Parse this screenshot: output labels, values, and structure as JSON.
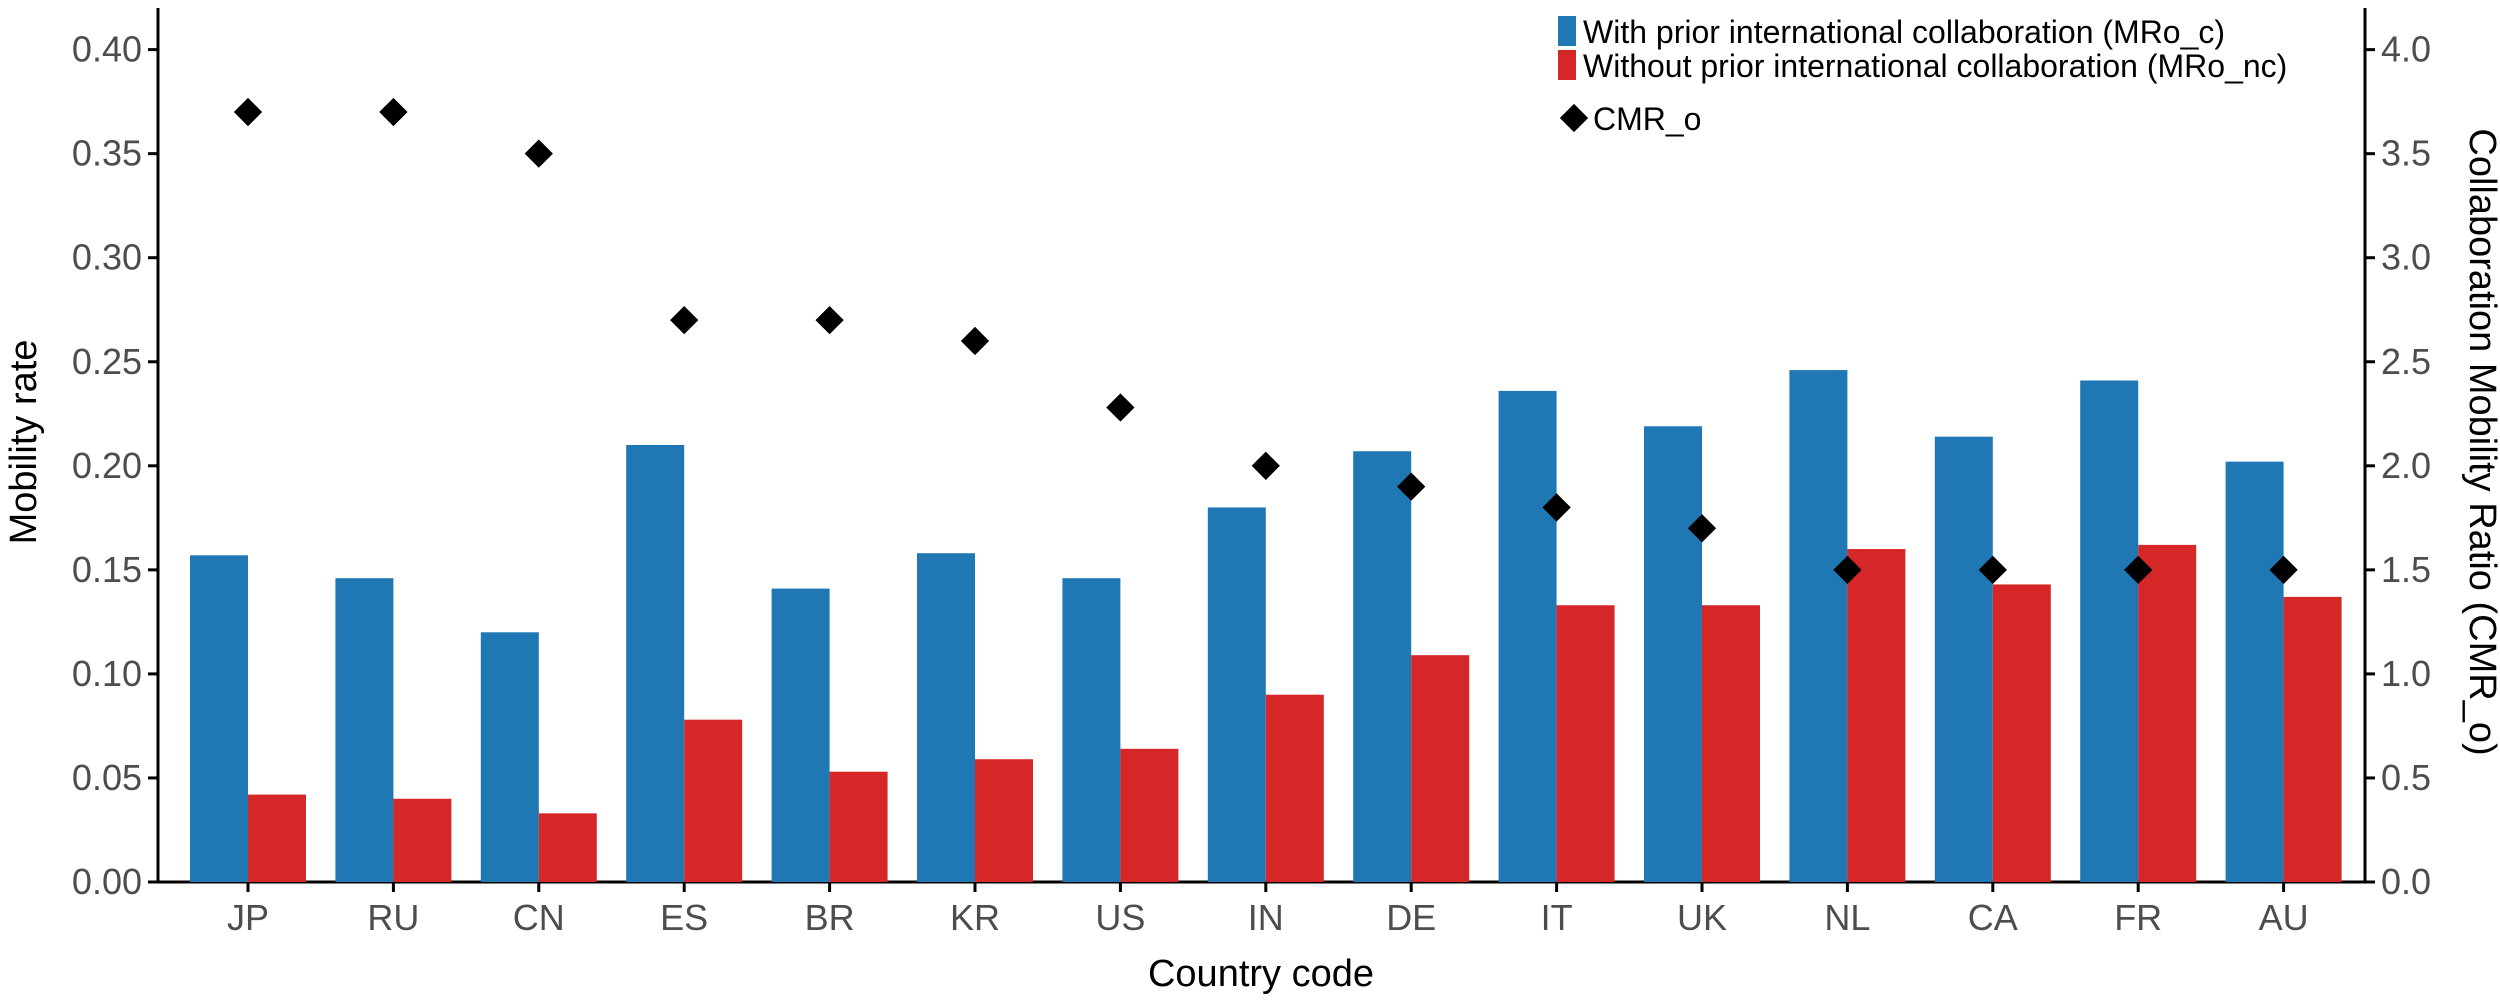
{
  "chart_data": {
    "type": "bar",
    "xlabel": "Country code",
    "ylabel": "Mobility rate",
    "y2label": "Collaboration Mobility Ratio (CMR_o)",
    "ylim": [
      0,
      0.42
    ],
    "y2lim": [
      0,
      4.2
    ],
    "yticks": [
      "0.00",
      "0.05",
      "0.10",
      "0.15",
      "0.20",
      "0.25",
      "0.30",
      "0.35",
      "0.40"
    ],
    "y2ticks": [
      "0.0",
      "0.5",
      "1.0",
      "1.5",
      "2.0",
      "2.5",
      "3.0",
      "3.5",
      "4.0"
    ],
    "categories": [
      "JP",
      "RU",
      "CN",
      "ES",
      "BR",
      "KR",
      "US",
      "IN",
      "DE",
      "IT",
      "UK",
      "NL",
      "CA",
      "FR",
      "AU"
    ],
    "series": [
      {
        "name": "With prior international collaboration (MRo_c)",
        "color": "#1f77b4",
        "axis": "left",
        "mark": "bar",
        "values": [
          0.157,
          0.146,
          0.12,
          0.21,
          0.141,
          0.158,
          0.146,
          0.18,
          0.207,
          0.236,
          0.219,
          0.246,
          0.214,
          0.241,
          0.202
        ]
      },
      {
        "name": "Without prior international collaboration (MRo_nc)",
        "color": "#d62728",
        "axis": "left",
        "mark": "bar",
        "values": [
          0.042,
          0.04,
          0.033,
          0.078,
          0.053,
          0.059,
          0.064,
          0.09,
          0.109,
          0.133,
          0.133,
          0.16,
          0.143,
          0.162,
          0.137
        ]
      },
      {
        "name": "CMR_o",
        "color": "#000000",
        "axis": "right",
        "mark": "diamond",
        "values": [
          3.7,
          3.7,
          3.5,
          2.7,
          2.7,
          2.6,
          2.28,
          2.0,
          1.9,
          1.8,
          1.7,
          1.5,
          1.5,
          1.5,
          1.5
        ]
      }
    ],
    "grid": false,
    "legend_position": "top-right"
  }
}
